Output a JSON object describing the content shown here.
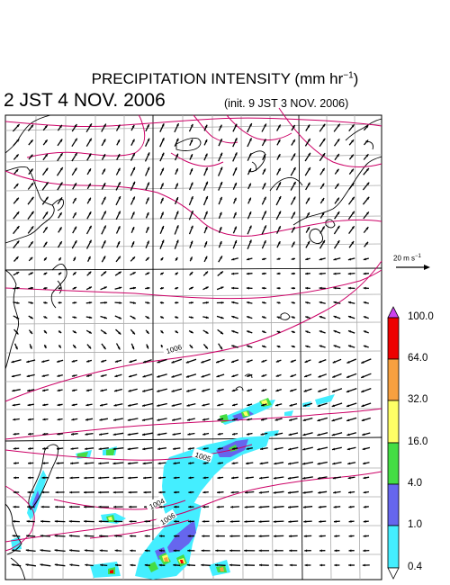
{
  "header": {
    "title_main": "PRECIPITATION INTENSITY (mm hr",
    "title_exp": "−1",
    "title_close": ")",
    "time": "2 JST 4 NOV. 2006",
    "init": "(init. 9 JST 3 NOV. 2006)"
  },
  "wind_scale": {
    "label": "20 m s",
    "exp": "−1"
  },
  "isobars": [
    "1006",
    "1005",
    "1004",
    "1006"
  ],
  "legend": {
    "levels": [
      "100.0",
      "64.0",
      "32.0",
      "16.0",
      "4.0",
      "1.0",
      "0.4"
    ],
    "colors": [
      "#ee0000",
      "#f7a040",
      "#ffff66",
      "#44dd44",
      "#6666ee",
      "#44eeff"
    ],
    "over_color": "#cc44ee",
    "under_color": "#ffffff"
  },
  "colors": {
    "isobar": "#cc0066",
    "grid": "#aaaaaa",
    "coast": "#000000"
  }
}
